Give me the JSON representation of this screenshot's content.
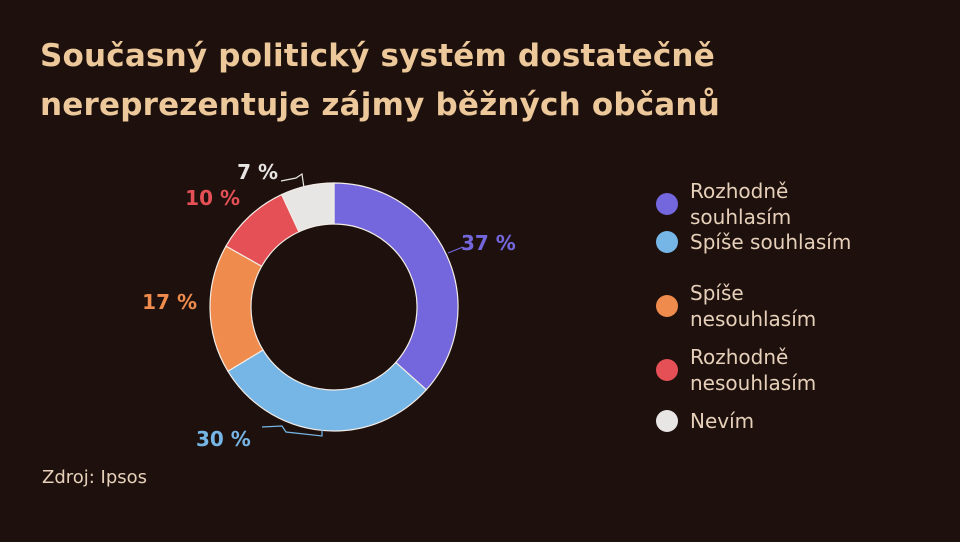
{
  "title_lines": [
    "Současný politický systém dostatečně",
    "nereprezentuje zájmy běžných občanů"
  ],
  "source": "Zdroj: Ipsos",
  "chart_data": {
    "type": "pie",
    "variant": "donut",
    "title": "Současný politický systém dostatečně nereprezentuje zájmy běžných občanů",
    "categories": [
      "Rozhodně souhlasím",
      "Spíše souhlasím",
      "Spíše nesouhlasím",
      "Rozhodně nesouhlasím",
      "Nevím"
    ],
    "values": [
      37,
      30,
      17,
      10,
      7
    ],
    "data_labels": [
      "37 %",
      "30 %",
      "17 %",
      "10 %",
      "7 %"
    ],
    "colors": [
      "#7467de",
      "#76b6e6",
      "#ef8b4d",
      "#e55056",
      "#e8e6e5"
    ],
    "legend_position": "right"
  },
  "legend": [
    {
      "lines": [
        "Rozhodně",
        "souhlasím"
      ],
      "color": "#7467de"
    },
    {
      "lines": [
        "Spíše souhlasím"
      ],
      "color": "#76b6e6"
    },
    {
      "lines": [
        "Spíše",
        "nesouhlasím"
      ],
      "color": "#ef8b4d"
    },
    {
      "lines": [
        "Rozhodně",
        "nesouhlasím"
      ],
      "color": "#e55056"
    },
    {
      "lines": [
        "Nevím"
      ],
      "color": "#e8e6e5"
    }
  ]
}
